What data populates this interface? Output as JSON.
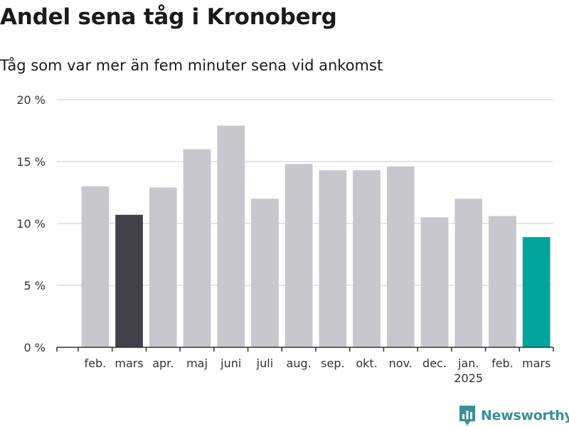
{
  "chart_data": {
    "type": "bar",
    "title": "Andel sena tåg i Kronoberg",
    "subtitle": "Tåg som var mer än fem minuter sena vid ankomst",
    "categories": [
      "feb.",
      "mars",
      "apr.",
      "maj",
      "juni",
      "juli",
      "aug.",
      "sep.",
      "okt.",
      "nov.",
      "dec.",
      "jan.",
      "feb.",
      "mars"
    ],
    "category_sublabels": [
      "",
      "",
      "",
      "",
      "",
      "",
      "",
      "",
      "",
      "",
      "",
      "2025",
      "",
      ""
    ],
    "values": [
      13.0,
      10.7,
      12.9,
      16.0,
      17.9,
      12.0,
      14.8,
      14.3,
      14.3,
      14.6,
      10.5,
      12.0,
      10.6,
      8.9
    ],
    "highlight": {
      "previous_year_index": 1,
      "current_index": 13
    },
    "ylim": [
      0,
      20
    ],
    "yticks": [
      0,
      5,
      10,
      15,
      20
    ],
    "ytick_labels": [
      "0 %",
      "5 %",
      "10 %",
      "15 %",
      "20 %"
    ],
    "grid": true,
    "colors": {
      "default_bar": "#c8c7ce",
      "previous_year_bar": "#41404b",
      "current_bar": "#00a49a",
      "grid": "#dddddd",
      "axis": "#333333"
    }
  },
  "logo": {
    "text": "Newsworthy",
    "icon": "newsworthy-logo-icon",
    "color": "#3a8f95"
  }
}
